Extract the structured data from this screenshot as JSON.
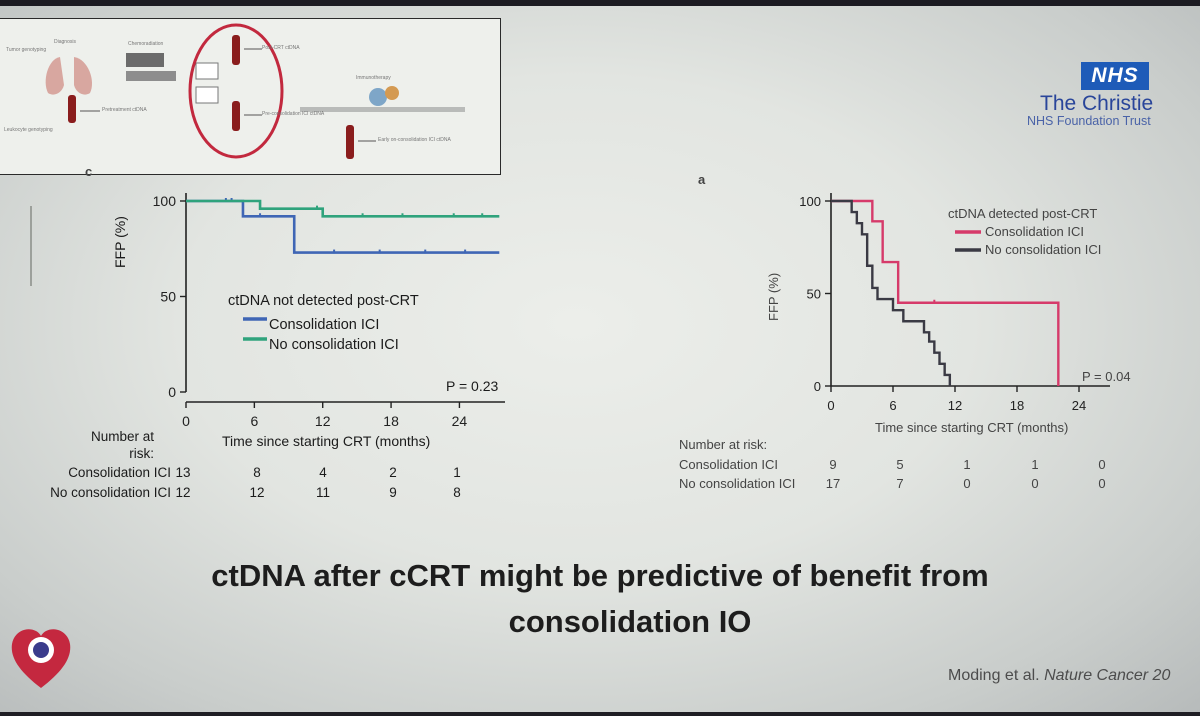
{
  "header": {
    "nhs_badge": "NHS",
    "org_name": "The Christie",
    "org_subtitle": "NHS Foundation Trust"
  },
  "schematic": {
    "labels": [
      "Tumor genotyping",
      "Diagnosis",
      "Leukocyte genotyping",
      "Pretreatment ctDNA",
      "Chemoradiation",
      "Post-CRT ctDNA",
      "Pre-consolidation ICI ctDNA",
      "Immunotherapy",
      "Early on-consolidation ICI ctDNA"
    ]
  },
  "headline": {
    "line1": "ctDNA after cCRT might be predictive of benefit from",
    "line2": "consolidation IO"
  },
  "citation": {
    "authors": "Moding et al.",
    "journal": "Nature Cancer 20"
  },
  "colors": {
    "consolidation_left": "#3f66b5",
    "no_consolidation_left": "#2fa37c",
    "consolidation_right": "#d63a6a",
    "no_consolidation_right": "#3a3a44",
    "circle": "#c2293e",
    "logo": "#c4283f"
  },
  "chart_data": [
    {
      "type": "line",
      "panel_label": "c",
      "title": "",
      "xlabel": "Time since starting CRT (months)",
      "ylabel": "FFP (%)",
      "xlim": [
        0,
        28
      ],
      "ylim": [
        0,
        100
      ],
      "xticks": [
        0,
        6,
        12,
        18,
        24
      ],
      "yticks": [
        0,
        50,
        100
      ],
      "legend_title": "ctDNA not detected post-CRT",
      "p_value": "P = 0.23",
      "series": [
        {
          "name": "Consolidation ICI",
          "color": "#3f66b5",
          "x": [
            0,
            5,
            9.5,
            27.5
          ],
          "y": [
            100,
            92,
            73,
            73
          ],
          "censor_x": [
            3.5,
            4,
            6.5,
            13,
            17,
            21,
            24.5
          ]
        },
        {
          "name": "No consolidation ICI",
          "color": "#2fa37c",
          "x": [
            0,
            6.5,
            12,
            27.5
          ],
          "y": [
            100,
            96,
            92,
            92
          ],
          "censor_x": [
            11.5,
            15.5,
            19,
            23.5,
            26
          ]
        }
      ],
      "risk_table": {
        "header": "Number at risk:",
        "times": [
          0,
          6,
          12,
          18,
          24
        ],
        "rows": [
          {
            "label": "Consolidation ICI",
            "counts": [
              "13",
              "8",
              "4",
              "2",
              "1"
            ]
          },
          {
            "label": "No consolidation ICI",
            "counts": [
              "12",
              "12",
              "11",
              "9",
              "8"
            ]
          }
        ]
      }
    },
    {
      "type": "line",
      "panel_label": "a",
      "title": "",
      "xlabel": "Time since starting CRT (months)",
      "ylabel": "FFP (%)",
      "xlim": [
        0,
        27
      ],
      "ylim": [
        0,
        100
      ],
      "xticks": [
        0,
        6,
        12,
        18,
        24
      ],
      "yticks": [
        0,
        50,
        100
      ],
      "legend_title": "ctDNA detected post-CRT",
      "p_value": "P = 0.04",
      "series": [
        {
          "name": "Consolidation ICI",
          "color": "#d63a6a",
          "x": [
            0,
            4,
            5,
            6.5,
            22
          ],
          "y": [
            100,
            89,
            67,
            45,
            0
          ],
          "censor_x": [
            10
          ]
        },
        {
          "name": "No consolidation ICI",
          "color": "#3a3a44",
          "x": [
            0,
            2,
            2.5,
            3,
            3.5,
            4,
            4.5,
            6,
            7,
            9,
            9.5,
            10,
            10.5,
            11,
            11.5
          ],
          "y": [
            100,
            94,
            88,
            82,
            65,
            53,
            47,
            41,
            35,
            29,
            24,
            18,
            12,
            6,
            0
          ],
          "censor_x": []
        }
      ],
      "risk_table": {
        "header": "Number at risk:",
        "times": [
          0,
          6,
          12,
          18,
          24
        ],
        "rows": [
          {
            "label": "Consolidation ICI",
            "counts": [
              "9",
              "5",
              "1",
              "1",
              "0"
            ]
          },
          {
            "label": "No consolidation ICI",
            "counts": [
              "17",
              "7",
              "0",
              "0",
              "0"
            ]
          }
        ]
      }
    }
  ]
}
